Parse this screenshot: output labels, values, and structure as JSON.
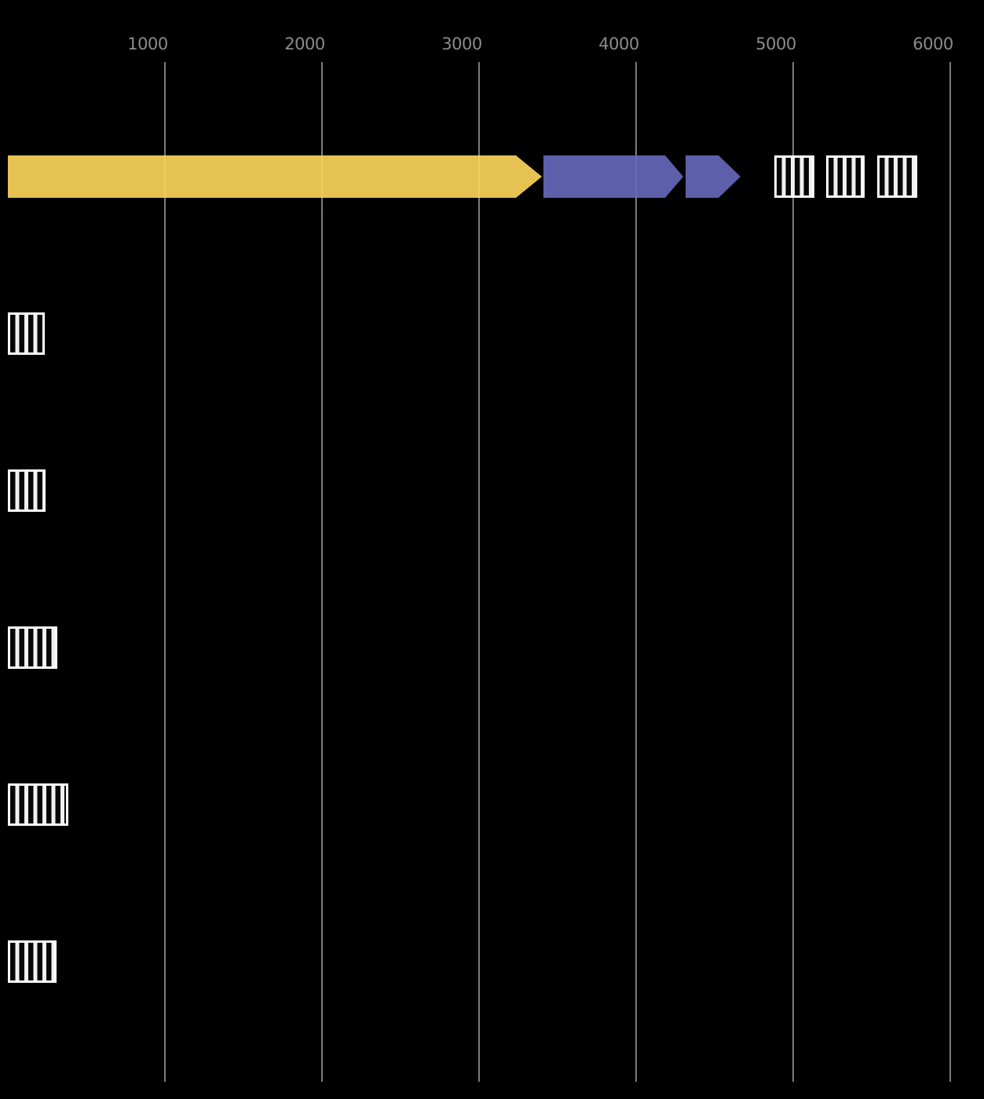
{
  "figure": {
    "background_color": "#000000",
    "gridline_color": "#7b7b7b",
    "tick_label_color": "#8b8b8b",
    "yellow_gene_color": "#ffd75c",
    "purple_gene_color": "#6769bc",
    "hatch_face_color": "#060606",
    "hatch_stripe_color": "#f0f0f0",
    "hatch_edge_color": "#fbfbfb"
  },
  "chart_data": {
    "type": "gene-diagram",
    "title": "",
    "xlabel": "",
    "ylabel": "",
    "xlim": [
      0,
      6215
    ],
    "x_ticks": [
      1000,
      2000,
      3000,
      4000,
      5000,
      6000
    ],
    "x_tick_labels": [
      "1000",
      "2000",
      "3000",
      "4000",
      "5000",
      "6000"
    ],
    "grid": true,
    "legend": "none",
    "tracks": [
      {
        "row": 1,
        "features": [
          {
            "name": "yellow-gene-arrow",
            "shape": "arrow",
            "fill": "#ffd75c",
            "start": 0,
            "head_start": 3235,
            "end": 3400,
            "direction": "right"
          },
          {
            "name": "purple-gene-arrow-1",
            "shape": "arrow",
            "fill": "#6769bc",
            "start": 3410,
            "head_start": 4185,
            "end": 4300,
            "direction": "right"
          },
          {
            "name": "purple-gene-arrow-2",
            "shape": "arrow",
            "fill": "#6769bc",
            "start": 4315,
            "head_start": 4525,
            "end": 4665,
            "direction": "right"
          },
          {
            "name": "hatched-feature-1",
            "shape": "box",
            "style": "vertical-hatch",
            "start": 4880,
            "end": 5135
          },
          {
            "name": "hatched-feature-2",
            "shape": "box",
            "style": "vertical-hatch",
            "start": 5210,
            "end": 5455
          },
          {
            "name": "hatched-feature-3",
            "shape": "box",
            "style": "vertical-hatch",
            "start": 5535,
            "end": 5790
          }
        ]
      },
      {
        "row": 2,
        "features": [
          {
            "name": "hatched-feature",
            "shape": "box",
            "style": "vertical-hatch",
            "start": 0,
            "end": 235
          }
        ]
      },
      {
        "row": 3,
        "features": [
          {
            "name": "hatched-feature",
            "shape": "box",
            "style": "vertical-hatch",
            "start": 0,
            "end": 240
          }
        ]
      },
      {
        "row": 4,
        "features": [
          {
            "name": "hatched-feature",
            "shape": "box",
            "style": "vertical-hatch",
            "start": 0,
            "end": 315
          }
        ]
      },
      {
        "row": 5,
        "features": [
          {
            "name": "hatched-feature",
            "shape": "box",
            "style": "vertical-hatch",
            "start": 0,
            "end": 385
          }
        ]
      },
      {
        "row": 6,
        "features": [
          {
            "name": "hatched-feature",
            "shape": "box",
            "style": "vertical-hatch",
            "start": 0,
            "end": 310
          }
        ]
      }
    ]
  }
}
